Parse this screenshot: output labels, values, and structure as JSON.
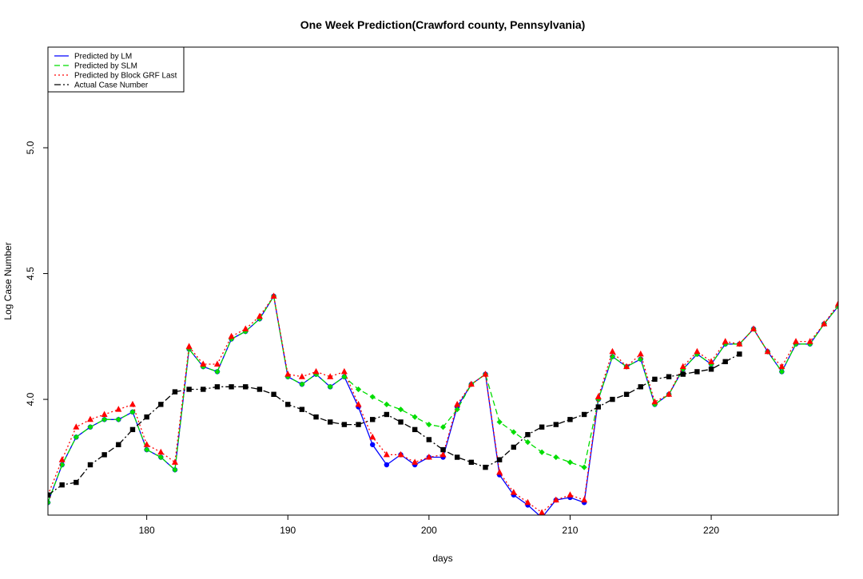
{
  "chart_data": {
    "type": "line",
    "title": "One Week Prediction(Crawford county, Pennsylvania)",
    "xlabel": "days",
    "ylabel": "Log Case Number",
    "xlim": [
      173,
      229
    ],
    "ylim": [
      3.54,
      5.4
    ],
    "x_ticks": [
      180,
      190,
      200,
      210,
      220
    ],
    "y_ticks": [
      4.0,
      4.5,
      5.0
    ],
    "y_tick_labels": [
      "4.0",
      "4.5",
      "5.0"
    ],
    "grid": false,
    "legend_position": "top-left",
    "x": [
      173,
      174,
      175,
      176,
      177,
      178,
      179,
      180,
      181,
      182,
      183,
      184,
      185,
      186,
      187,
      188,
      189,
      190,
      191,
      192,
      193,
      194,
      195,
      196,
      197,
      198,
      199,
      200,
      201,
      202,
      203,
      204,
      205,
      206,
      207,
      208,
      209,
      210,
      211,
      212,
      213,
      214,
      215,
      216,
      217,
      218,
      219,
      220,
      221,
      222,
      223,
      224,
      225,
      226,
      227,
      228,
      229
    ],
    "series": [
      {
        "name": "Predicted by LM",
        "color": "#0000ff",
        "dash": "",
        "marker": "circle",
        "values": [
          3.59,
          3.74,
          3.85,
          3.89,
          3.92,
          3.92,
          3.95,
          3.8,
          3.77,
          3.72,
          4.2,
          4.13,
          4.11,
          4.24,
          4.27,
          4.32,
          4.41,
          4.09,
          4.06,
          4.1,
          4.05,
          4.09,
          3.97,
          3.82,
          3.74,
          3.78,
          3.74,
          3.77,
          3.77,
          3.97,
          4.06,
          4.1,
          3.7,
          3.62,
          3.58,
          3.53,
          3.6,
          3.61,
          3.59,
          4.0,
          4.17,
          4.13,
          4.16,
          3.98,
          4.02,
          4.12,
          4.18,
          4.14,
          4.22,
          4.22,
          4.28,
          4.19,
          4.11,
          4.22,
          4.22,
          4.3,
          4.37
        ]
      },
      {
        "name": "Predicted by SLM",
        "color": "#00dd00",
        "dash": "7 4",
        "marker": "diamond",
        "values": [
          3.59,
          3.74,
          3.85,
          3.89,
          3.92,
          3.92,
          3.95,
          3.8,
          3.77,
          3.72,
          4.2,
          4.13,
          4.11,
          4.24,
          4.27,
          4.32,
          4.41,
          4.09,
          4.06,
          4.1,
          4.05,
          4.09,
          4.04,
          4.01,
          3.98,
          3.96,
          3.93,
          3.9,
          3.89,
          3.96,
          4.06,
          4.1,
          3.91,
          3.87,
          3.83,
          3.79,
          3.77,
          3.75,
          3.73,
          4.0,
          4.17,
          4.13,
          4.16,
          3.98,
          4.02,
          4.12,
          4.18,
          4.14,
          4.22,
          4.22,
          4.28,
          4.19,
          4.11,
          4.22,
          4.22,
          4.3,
          4.37
        ]
      },
      {
        "name": "Predicted by Block GRF Last",
        "color": "#ff0000",
        "dash": "2 3",
        "marker": "triangle",
        "values": [
          3.62,
          3.76,
          3.89,
          3.92,
          3.94,
          3.96,
          3.98,
          3.82,
          3.79,
          3.75,
          4.21,
          4.14,
          4.14,
          4.25,
          4.28,
          4.33,
          4.41,
          4.1,
          4.09,
          4.11,
          4.09,
          4.11,
          3.98,
          3.85,
          3.78,
          3.78,
          3.75,
          3.77,
          3.78,
          3.98,
          4.06,
          4.1,
          3.71,
          3.63,
          3.59,
          3.55,
          3.6,
          3.62,
          3.6,
          4.01,
          4.19,
          4.13,
          4.18,
          3.99,
          4.02,
          4.13,
          4.19,
          4.15,
          4.23,
          4.22,
          4.28,
          4.19,
          4.13,
          4.23,
          4.23,
          4.3,
          4.38
        ]
      },
      {
        "name": "Actual Case Number",
        "color": "#000000",
        "dash": "8 3 2 3",
        "marker": "square",
        "values": [
          3.62,
          3.66,
          3.67,
          3.74,
          3.78,
          3.82,
          3.88,
          3.93,
          3.98,
          4.03,
          4.04,
          4.04,
          4.05,
          4.05,
          4.05,
          4.04,
          4.02,
          3.98,
          3.96,
          3.93,
          3.91,
          3.9,
          3.9,
          3.92,
          3.94,
          3.91,
          3.88,
          3.84,
          3.8,
          3.77,
          3.75,
          3.73,
          3.76,
          3.81,
          3.86,
          3.89,
          3.9,
          3.92,
          3.94,
          3.97,
          4.0,
          4.02,
          4.05,
          4.08,
          4.09,
          4.1,
          4.11,
          4.12,
          4.15,
          4.18,
          null,
          null,
          null,
          null,
          null,
          null,
          null
        ]
      }
    ]
  }
}
